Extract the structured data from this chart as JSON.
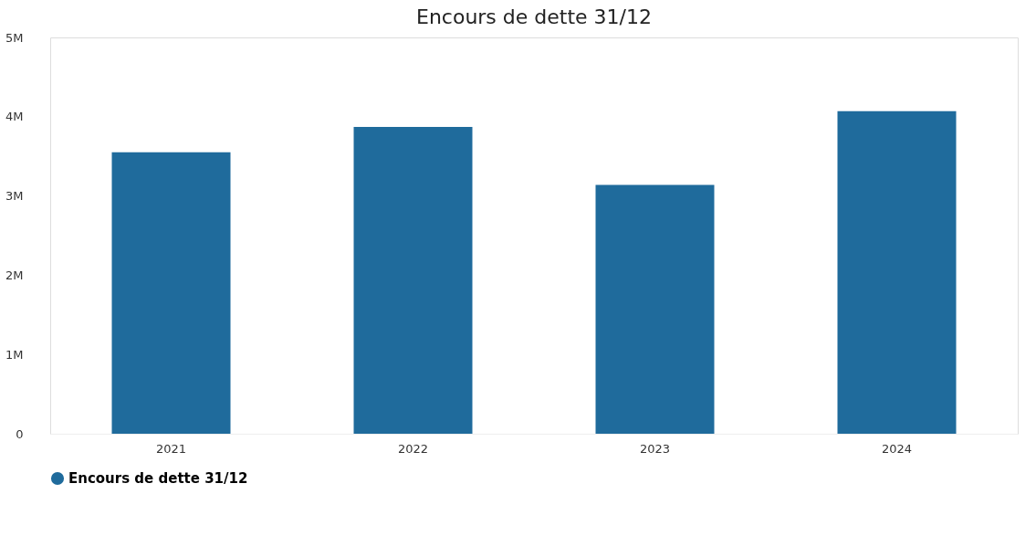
{
  "chart_data": {
    "type": "bar",
    "title": "Encours de dette 31/12",
    "categories": [
      "2021",
      "2022",
      "2023",
      "2024"
    ],
    "series": [
      {
        "name": "Encours de dette 31/12",
        "color": "#1f6b9c",
        "values": [
          3550000,
          3870000,
          3140000,
          4070000
        ]
      }
    ],
    "ylim": [
      0,
      5000000
    ],
    "yticks": [
      {
        "value": 0,
        "label": "0"
      },
      {
        "value": 1000000,
        "label": "1M"
      },
      {
        "value": 2000000,
        "label": "2M"
      },
      {
        "value": 3000000,
        "label": "3M"
      },
      {
        "value": 4000000,
        "label": "4M"
      },
      {
        "value": 5000000,
        "label": "5M"
      }
    ],
    "grid": false,
    "legend": "bottom"
  }
}
